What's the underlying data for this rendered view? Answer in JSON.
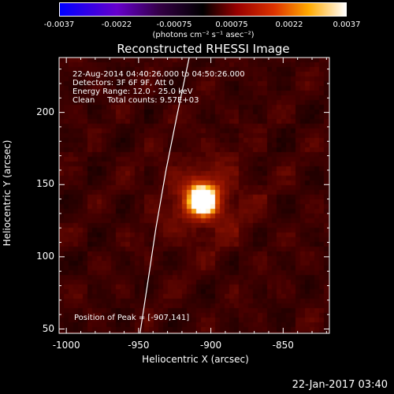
{
  "colorbar": {
    "ticks": [
      "-0.0037",
      "-0.0022",
      "-0.00075",
      "0.00075",
      "0.0022",
      "0.0037"
    ],
    "units": "(photons cm⁻² s⁻¹ asec⁻²)",
    "min": -0.0037,
    "max": 0.0037
  },
  "title": "Reconstructed RHESSI Image",
  "annotation": {
    "line1": "22-Aug-2014 04:40:26.000 to 04:50:26.000",
    "line2": "Detectors: 3F 6F 9F, Att 0",
    "line3": "Energy Range: 12.0 - 25.0 keV",
    "line4": "Clean     Total counts: 9.57E+03"
  },
  "peak_text": "Position of Peak = [-907,141]",
  "timestamp": "22-Jan-2017 03:40",
  "chart_data": {
    "type": "heatmap",
    "title": "Reconstructed RHESSI Image",
    "xlabel": "Heliocentric X (arcsec)",
    "ylabel": "Heliocentric Y (arcsec)",
    "xlim": [
      -1005,
      -818
    ],
    "ylim": [
      47,
      238
    ],
    "x_ticks": [
      "-1000",
      "-950",
      "-900",
      "-850"
    ],
    "x_tick_values": [
      -1000,
      -950,
      -900,
      -850
    ],
    "y_ticks": [
      "50",
      "100",
      "150",
      "200"
    ],
    "y_tick_values": [
      50,
      100,
      150,
      200
    ],
    "peak": {
      "x": -907,
      "y": 141
    },
    "limb_curve": [
      [
        -949,
        47
      ],
      [
        -944,
        80
      ],
      [
        -938,
        120
      ],
      [
        -931,
        160
      ],
      [
        -923,
        200
      ],
      [
        -915,
        238
      ]
    ]
  }
}
